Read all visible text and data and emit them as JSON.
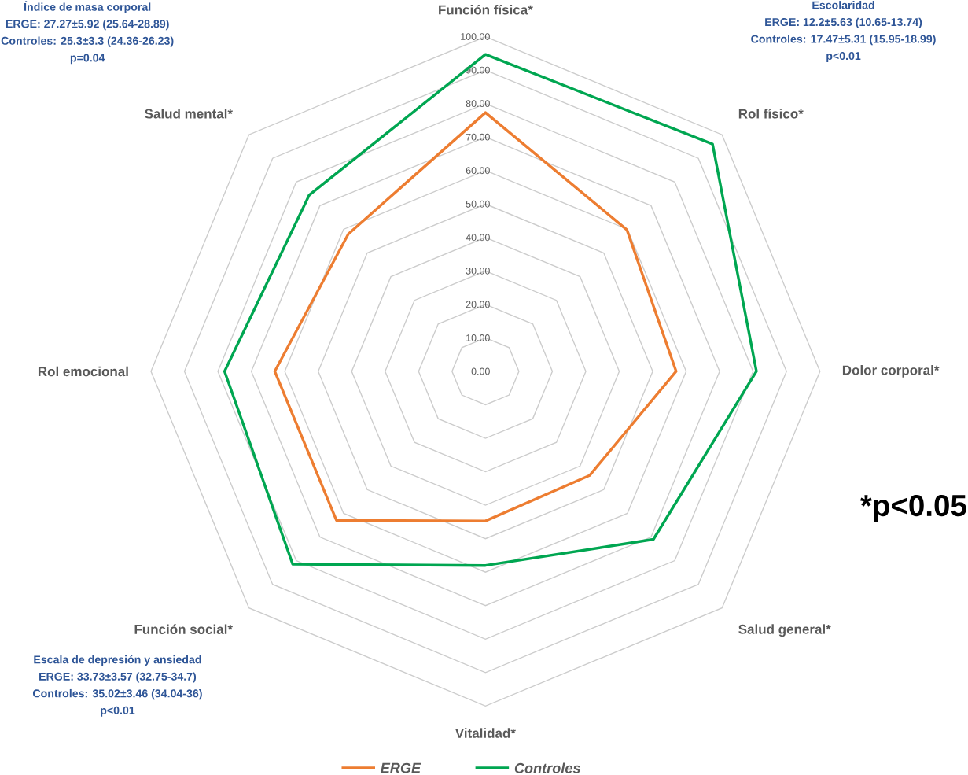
{
  "chart_data": {
    "type": "radar",
    "categories": [
      "Función física*",
      "Rol físico*",
      "Dolor corporal*",
      "Salud general*",
      "Vitalidad*",
      "Función social*",
      "Rol emocional",
      "Salud mental*"
    ],
    "series": [
      {
        "name": "ERGE",
        "color": "#ed7d31",
        "values": [
          77.3,
          59.8,
          57,
          44,
          44.7,
          63,
          63,
          58
        ]
      },
      {
        "name": "Controles",
        "color": "#00a651",
        "values": [
          94.7,
          96,
          81,
          71,
          58,
          81.5,
          78,
          74.5
        ]
      }
    ],
    "ylim": [
      0,
      100
    ],
    "yticks": [
      {
        "value": 0,
        "label": "0.00"
      },
      {
        "value": 10,
        "label": "10.00"
      },
      {
        "value": 20,
        "label": "20.00"
      },
      {
        "value": 30,
        "label": "30.00"
      },
      {
        "value": 40,
        "label": "40.00"
      },
      {
        "value": 50,
        "label": "50.00"
      },
      {
        "value": 60,
        "label": "60.00"
      },
      {
        "value": 70,
        "label": "70.00"
      },
      {
        "value": 80,
        "label": "80.00"
      },
      {
        "value": 90,
        "label": "90.00"
      },
      {
        "value": 100,
        "label": "100.00"
      }
    ],
    "grid": true,
    "legend": "bottom",
    "annotations": [
      "Índice de masa corporal",
      "ERGE: 27.27±5.92 (25.64-28.89)",
      "Controles: 25.3±3.3 (24.36-26.23)",
      "p=0.04",
      "Escolaridad",
      "ERGE: 12.2±5.63 (10.65-13.74)",
      "Controles: 17.47±5.31 (15.95-18.99)",
      "p<0.01",
      "Escala de depresión y ansiedad",
      "ERGE: 33.73±3.57 (32.75-34.7)",
      "Controles: 35.02±3.46 (34.04-36)",
      "p<0.01",
      "*p<0.05"
    ]
  }
}
